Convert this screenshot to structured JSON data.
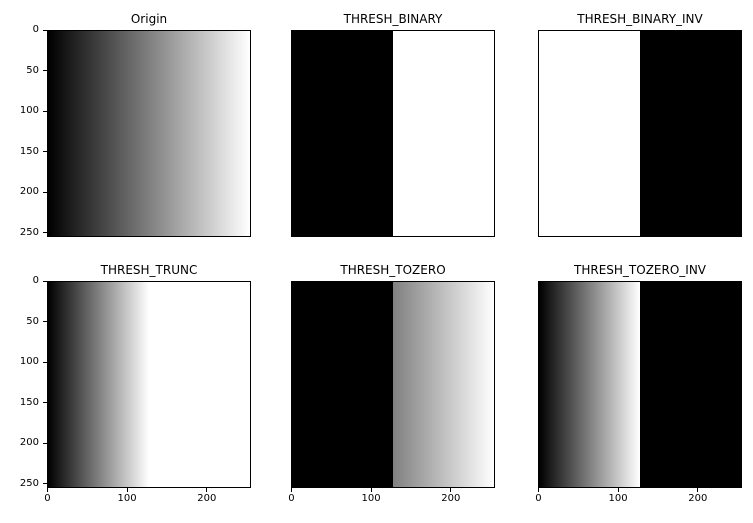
{
  "figure": {
    "background": "#ffffff",
    "axis_color": "#000000",
    "text_color": "#000000"
  },
  "chart_data": {
    "type": "heatmap",
    "layout": "2x3 grid of grayscale images (matplotlib subplots)",
    "x_range": [
      0,
      255
    ],
    "y_range": [
      0,
      255
    ],
    "x_ticks": [
      0,
      100,
      200
    ],
    "y_ticks": [
      0,
      50,
      100,
      150,
      200,
      250
    ],
    "threshold": 127,
    "grid": false,
    "legend": "none",
    "subplots": [
      {
        "title": "Origin",
        "row": 0,
        "col": 0,
        "show_y_ticks": true,
        "show_x_ticks": false,
        "pixels": "horizontal grayscale ramp 0 (left, black) to 255 (right, white)",
        "gradient_stops": [
          [
            0,
            "#000000"
          ],
          [
            100,
            "#ffffff"
          ]
        ]
      },
      {
        "title": "THRESH_BINARY",
        "row": 0,
        "col": 1,
        "show_y_ticks": false,
        "show_x_ticks": false,
        "pixels": "values < 127 become 0 (black left half), values >= 127 become 255 (white right half)",
        "gradient_stops": [
          [
            0,
            "#000000"
          ],
          [
            50,
            "#000000"
          ],
          [
            50,
            "#ffffff"
          ],
          [
            100,
            "#ffffff"
          ]
        ]
      },
      {
        "title": "THRESH_BINARY_INV",
        "row": 0,
        "col": 2,
        "show_y_ticks": false,
        "show_x_ticks": false,
        "pixels": "inverse binary: white left half, black right half",
        "gradient_stops": [
          [
            0,
            "#ffffff"
          ],
          [
            50,
            "#ffffff"
          ],
          [
            50,
            "#000000"
          ],
          [
            100,
            "#000000"
          ]
        ]
      },
      {
        "title": "THRESH_TRUNC",
        "row": 1,
        "col": 0,
        "show_y_ticks": true,
        "show_x_ticks": true,
        "pixels": "ramp 0-127 then truncated at 127; display normalized so right half appears white",
        "gradient_stops": [
          [
            0,
            "#000000"
          ],
          [
            50,
            "#ffffff"
          ],
          [
            100,
            "#ffffff"
          ]
        ]
      },
      {
        "title": "THRESH_TOZERO",
        "row": 1,
        "col": 1,
        "show_y_ticks": false,
        "show_x_ticks": true,
        "pixels": "values < 127 set to 0 (black left half), ramp 127-255 kept (mid-gray to white right half)",
        "gradient_stops": [
          [
            0,
            "#000000"
          ],
          [
            50,
            "#000000"
          ],
          [
            50,
            "#808080"
          ],
          [
            100,
            "#ffffff"
          ]
        ]
      },
      {
        "title": "THRESH_TOZERO_INV",
        "row": 1,
        "col": 2,
        "show_y_ticks": false,
        "show_x_ticks": true,
        "pixels": "ramp 0-127 kept (normalized black to white on left half), values >= 127 set to 0 (black right half)",
        "gradient_stops": [
          [
            0,
            "#000000"
          ],
          [
            50,
            "#ffffff"
          ],
          [
            50,
            "#000000"
          ],
          [
            100,
            "#000000"
          ]
        ]
      }
    ]
  }
}
